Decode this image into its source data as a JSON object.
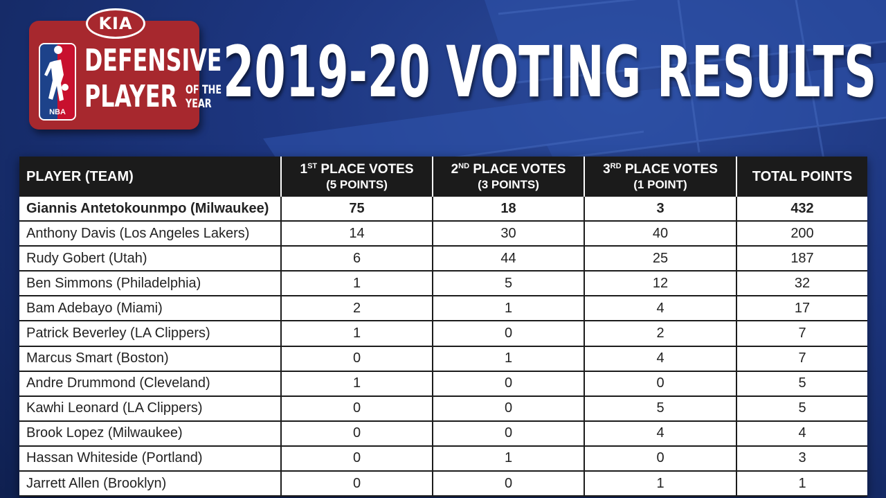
{
  "logo": {
    "sponsor": "KIA",
    "league": "NBA",
    "line1": "DEFENSIVE",
    "line2": "PLAYER",
    "line2_small_a": "OF THE",
    "line2_small_b": "YEAR"
  },
  "headline": "2019-20 VOTING RESULTS",
  "colors": {
    "background": "#1d3680",
    "logo_red": "#a7282e",
    "header_black": "#1b1b1b",
    "text_white": "#ffffff"
  },
  "table": {
    "columns": {
      "player": "PLAYER (TEAM)",
      "first": {
        "num": "1",
        "sup": "ST",
        "label": " PLACE VOTES",
        "sub": "(5 POINTS)"
      },
      "second": {
        "num": "2",
        "sup": "ND",
        "label": " PLACE VOTES",
        "sub": "(3 POINTS)"
      },
      "third": {
        "num": "3",
        "sup": "RD",
        "label": " PLACE VOTES",
        "sub": "(1 POINT)"
      },
      "total": "TOTAL POINTS"
    },
    "rows": [
      {
        "player": "Giannis Antetokounmpo (Milwaukee)",
        "first": "75",
        "second": "18",
        "third": "3",
        "total": "432"
      },
      {
        "player": "Anthony Davis (Los Angeles Lakers)",
        "first": "14",
        "second": "30",
        "third": "40",
        "total": "200"
      },
      {
        "player": "Rudy Gobert (Utah)",
        "first": "6",
        "second": "44",
        "third": "25",
        "total": "187"
      },
      {
        "player": "Ben Simmons (Philadelphia)",
        "first": "1",
        "second": "5",
        "third": "12",
        "total": "32"
      },
      {
        "player": "Bam Adebayo (Miami)",
        "first": "2",
        "second": "1",
        "third": "4",
        "total": "17"
      },
      {
        "player": "Patrick Beverley (LA Clippers)",
        "first": "1",
        "second": "0",
        "third": "2",
        "total": "7"
      },
      {
        "player": "Marcus Smart (Boston)",
        "first": "0",
        "second": "1",
        "third": "4",
        "total": "7"
      },
      {
        "player": "Andre Drummond (Cleveland)",
        "first": "1",
        "second": "0",
        "third": "0",
        "total": "5"
      },
      {
        "player": "Kawhi Leonard (LA Clippers)",
        "first": "0",
        "second": "0",
        "third": "5",
        "total": "5"
      },
      {
        "player": "Brook Lopez (Milwaukee)",
        "first": "0",
        "second": "0",
        "third": "4",
        "total": "4"
      },
      {
        "player": "Hassan Whiteside (Portland)",
        "first": "0",
        "second": "1",
        "third": "0",
        "total": "3"
      },
      {
        "player": "Jarrett Allen (Brooklyn)",
        "first": "0",
        "second": "0",
        "third": "1",
        "total": "1"
      }
    ]
  }
}
